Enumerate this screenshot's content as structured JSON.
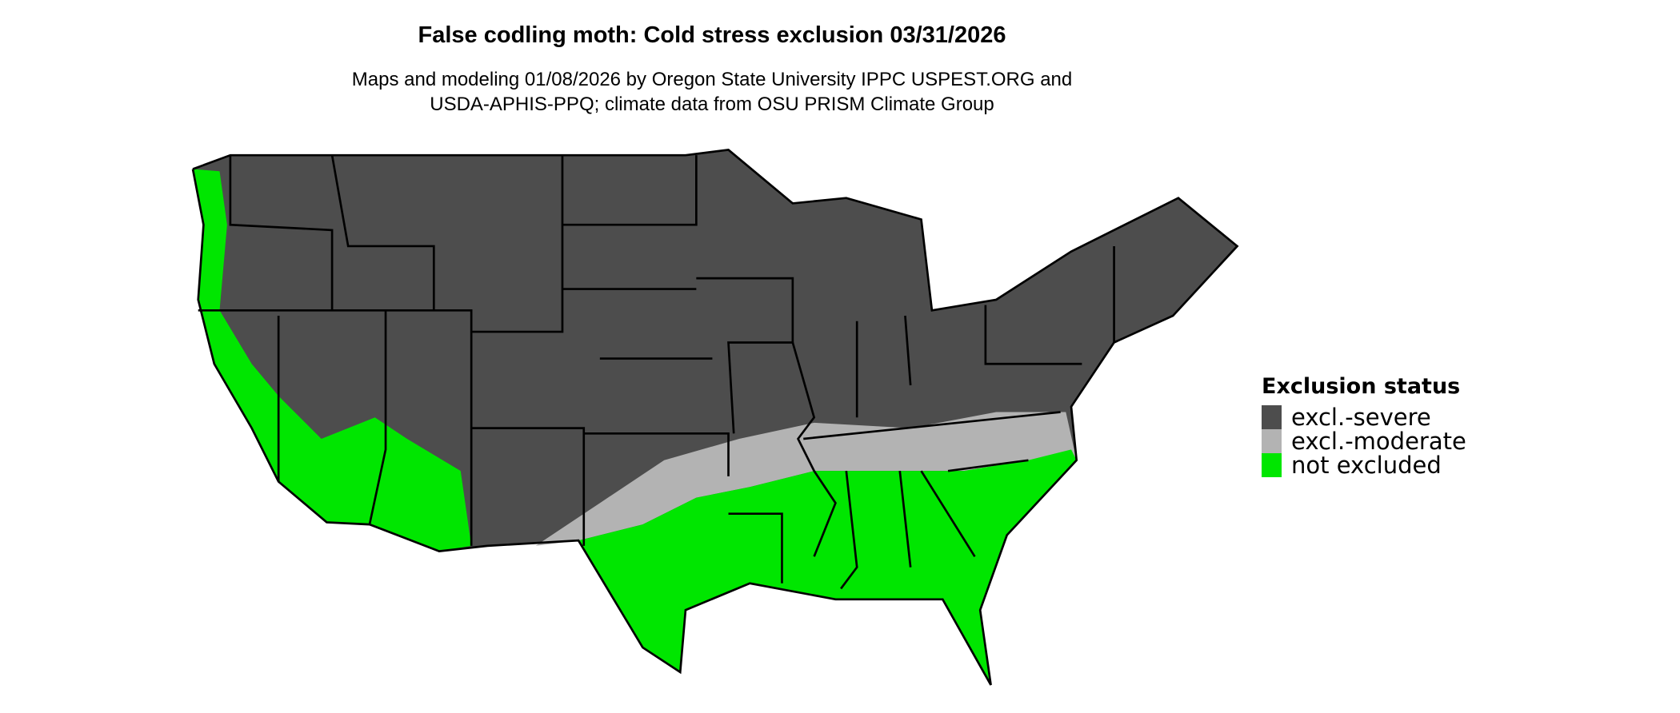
{
  "title": "False codling moth: Cold stress exclusion 03/31/2026",
  "subtitle_lines": [
    "Maps and modeling 01/08/2026 by Oregon State University IPPC USPEST.ORG and",
    "USDA-APHIS-PPQ; climate data from OSU PRISM Climate Group"
  ],
  "map": {
    "region": "Contiguous United States",
    "boundaries": "state borders"
  },
  "legend": {
    "title": "Exclusion status",
    "items": [
      {
        "label": "excl.-severe",
        "color": "#4d4d4d"
      },
      {
        "label": "excl.-moderate",
        "color": "#b3b3b3"
      },
      {
        "label": "not excluded",
        "color": "#00e600"
      }
    ]
  }
}
